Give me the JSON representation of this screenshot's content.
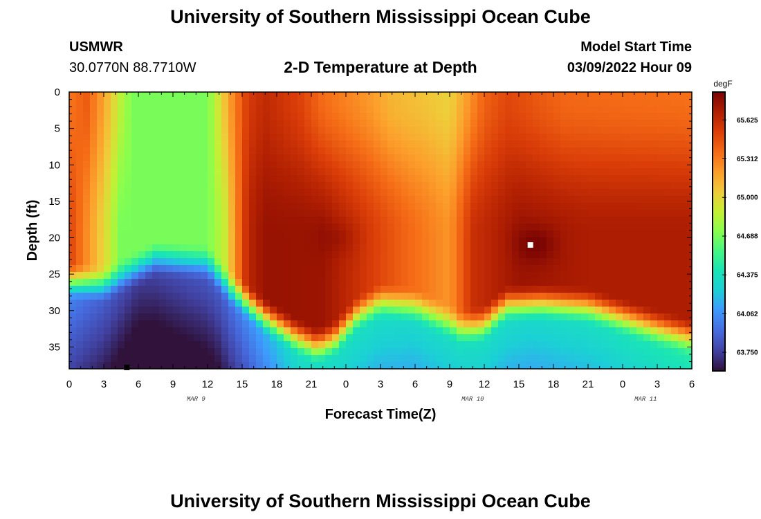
{
  "header": {
    "main_title": "University of Southern Mississippi Ocean Cube",
    "station": "USMWR",
    "coords": "30.0770N  88.7710W",
    "chart_title": "2-D Temperature at Depth",
    "model_label": "Model Start Time",
    "model_time": "03/09/2022 Hour 09",
    "footer_title": "University of Southern Mississippi Ocean Cube"
  },
  "chart_data": {
    "type": "heatmap",
    "title": "2-D Temperature at Depth",
    "xlabel": "Forecast Time(Z)",
    "ylabel": "Depth (ft)",
    "x_range_hours": [
      0,
      54
    ],
    "y_range_ft": [
      0,
      38
    ],
    "x_tick_labels": [
      "0",
      "3",
      "6",
      "9",
      "12",
      "15",
      "18",
      "21",
      "0",
      "3",
      "6",
      "9",
      "12",
      "15",
      "18",
      "21",
      "0",
      "3",
      "6"
    ],
    "y_ticks": [
      0,
      5,
      10,
      15,
      20,
      25,
      30,
      35
    ],
    "date_labels": [
      {
        "hour": 11,
        "label": "MAR 9"
      },
      {
        "hour": 35,
        "label": "MAR 10"
      },
      {
        "hour": 50,
        "label": "MAR 11"
      }
    ],
    "colorbar": {
      "unit": "degF",
      "min": 63.6,
      "max": 65.85,
      "tick_values": [
        63.75,
        64.062,
        64.375,
        64.688,
        65.0,
        65.312,
        65.625
      ],
      "tick_labels": [
        "63.750",
        "64.062",
        "64.375",
        "64.688",
        "65.000",
        "65.312",
        "65.625"
      ]
    },
    "markers": [
      {
        "hour": 40,
        "depth": 21,
        "color": "#ffffff"
      },
      {
        "hour": 5,
        "depth": 37.8,
        "color": "#000000"
      }
    ],
    "surface_temp_degF": [
      [
        0,
        65.33
      ],
      [
        1.5,
        65.42
      ],
      [
        3,
        65.18
      ],
      [
        4.5,
        64.85
      ],
      [
        5.5,
        64.69
      ],
      [
        12,
        64.69
      ],
      [
        13,
        64.95
      ],
      [
        14,
        65.22
      ],
      [
        15.5,
        65.55
      ],
      [
        17,
        65.63
      ],
      [
        20,
        65.52
      ],
      [
        22,
        65.36
      ],
      [
        26,
        65.22
      ],
      [
        28,
        65.12
      ],
      [
        31,
        65.07
      ],
      [
        33,
        65.02
      ],
      [
        36,
        65.4
      ],
      [
        38,
        65.5
      ],
      [
        43,
        65.38
      ],
      [
        54,
        65.35
      ]
    ],
    "mid_temp_degF": [
      [
        0,
        65.52
      ],
      [
        3,
        65.0
      ],
      [
        4.5,
        64.69
      ],
      [
        12,
        64.69
      ],
      [
        13.5,
        64.9
      ],
      [
        15.5,
        65.65
      ],
      [
        17,
        65.76
      ],
      [
        22,
        65.75
      ],
      [
        25,
        65.6
      ],
      [
        29,
        65.4
      ],
      [
        33,
        65.23
      ],
      [
        35,
        65.6
      ],
      [
        39,
        65.75
      ],
      [
        45,
        65.7
      ],
      [
        54,
        65.7
      ]
    ],
    "core_peaks": [
      {
        "hour": 23.5,
        "depth": 20,
        "extra_degF": 0.06
      },
      {
        "hour": 40.5,
        "depth": 21,
        "extra_degF": 0.12
      }
    ],
    "thermocline_depth_ft": [
      [
        0,
        26
      ],
      [
        3,
        26.5
      ],
      [
        5,
        25
      ],
      [
        7.5,
        23
      ],
      [
        12,
        23.5
      ],
      [
        14,
        27
      ],
      [
        17,
        31
      ],
      [
        19.5,
        33.5
      ],
      [
        21.5,
        35
      ],
      [
        23,
        34
      ],
      [
        25,
        30.5
      ],
      [
        27,
        28.8
      ],
      [
        30,
        29.5
      ],
      [
        32,
        31
      ],
      [
        34,
        32.5
      ],
      [
        36,
        32
      ],
      [
        37,
        30.5
      ],
      [
        38,
        29.2
      ],
      [
        41,
        29
      ],
      [
        45,
        29.5
      ],
      [
        48,
        31
      ],
      [
        51,
        32.5
      ],
      [
        54,
        33.8
      ]
    ],
    "bottom_temp_degF": [
      [
        0,
        64.0
      ],
      [
        6,
        63.72
      ],
      [
        13,
        63.85
      ],
      [
        20,
        64.35
      ],
      [
        25,
        64.35
      ],
      [
        30,
        64.3
      ],
      [
        35,
        64.35
      ],
      [
        40,
        64.3
      ],
      [
        46,
        64.35
      ],
      [
        54,
        64.45
      ]
    ]
  }
}
